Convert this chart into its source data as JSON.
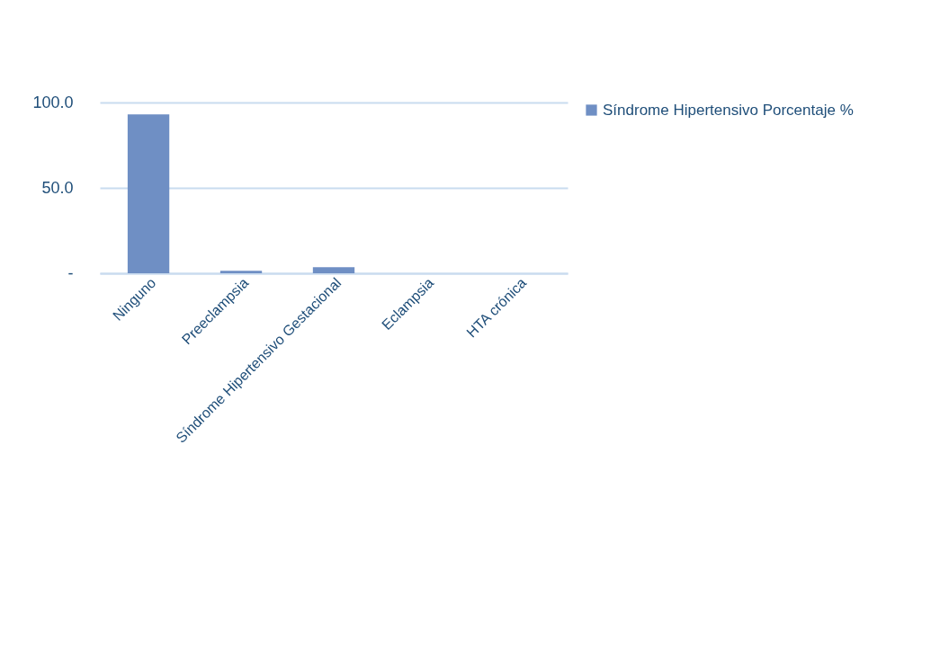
{
  "chart_data": {
    "type": "bar",
    "categories": [
      "Ninguno",
      "Preeclampsia",
      "Síndrome Hipertensivo Gestacional",
      "Eclampsia",
      "HTA crónica"
    ],
    "series": [
      {
        "name": "Síndrome Hipertensivo  Porcentaje %",
        "color": "#6f8fc4",
        "values": [
          93,
          1.5,
          3.5,
          0,
          0
        ]
      }
    ],
    "ylim": [
      0,
      100
    ],
    "yticks": [
      {
        "value": 0,
        "label": "-"
      },
      {
        "value": 50,
        "label": "50.0"
      },
      {
        "value": 100,
        "label": "100.0"
      }
    ],
    "grid": "y",
    "legend": "right"
  }
}
